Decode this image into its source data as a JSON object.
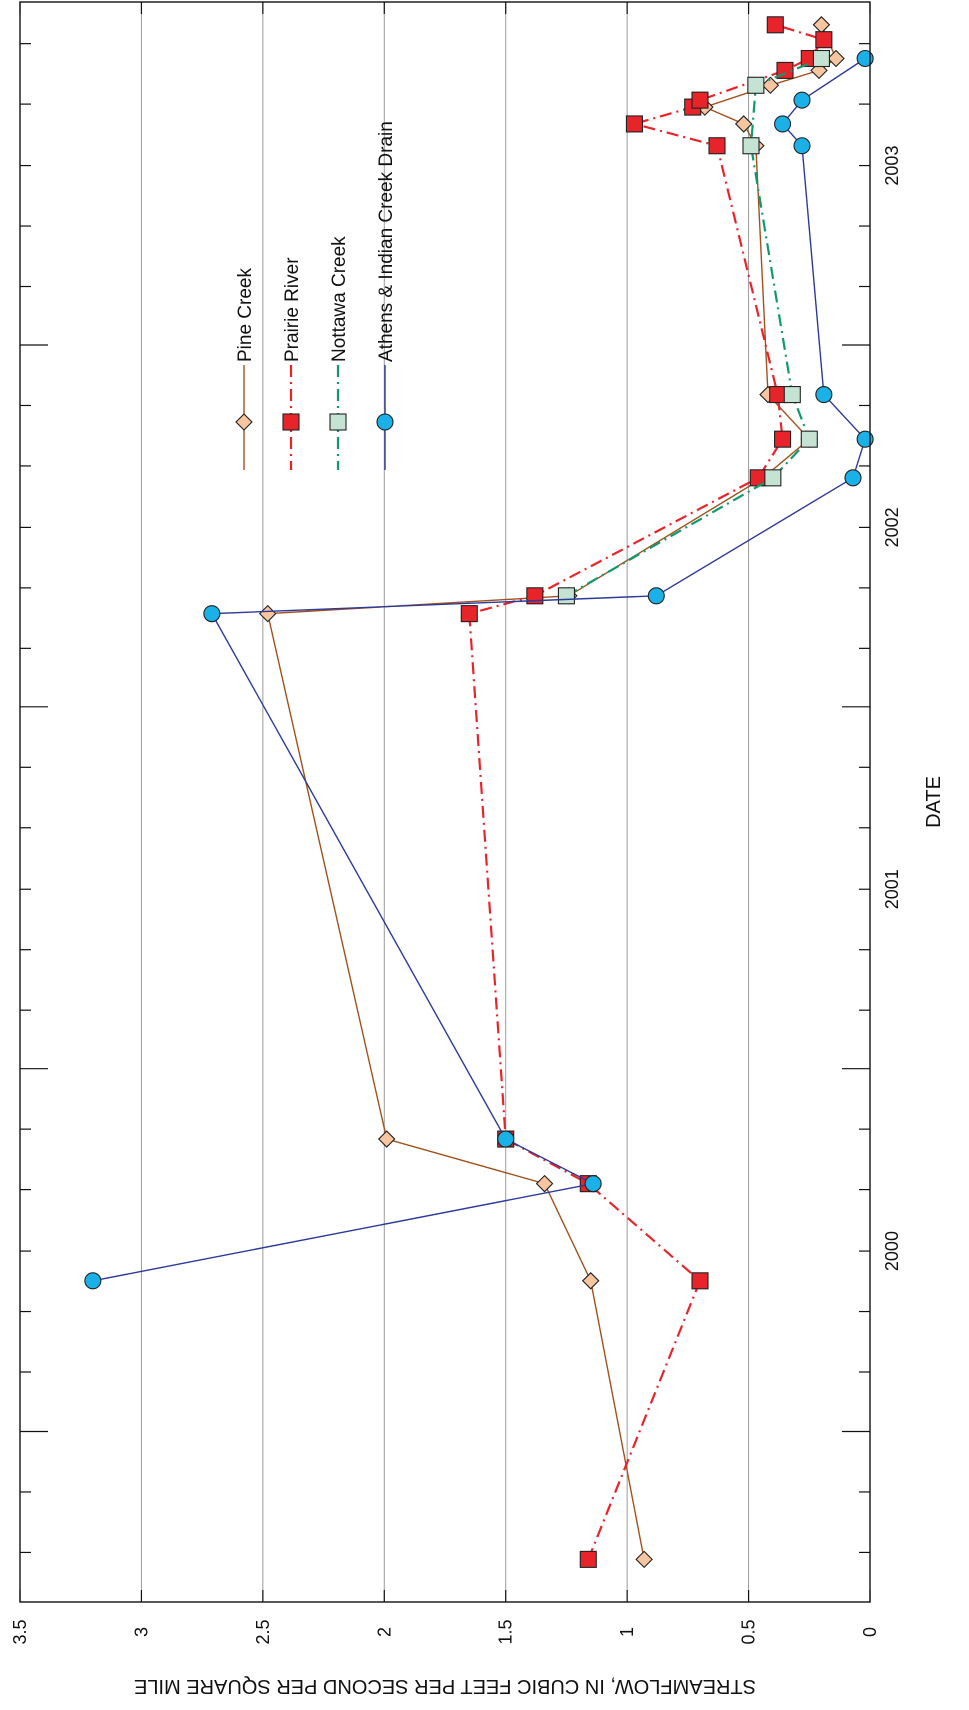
{
  "chart_data": {
    "type": "line",
    "orientation": "rotated-90",
    "xlabel": "DATE",
    "ylabel": "STREAMFLOW, IN CUBIC FEET PER SECOND PER SQUARE MILE",
    "ylim": [
      0,
      3.5
    ],
    "y_ticks": [
      {
        "value": 0,
        "label": "0"
      },
      {
        "value": 0.5,
        "label": "0.5"
      },
      {
        "value": 1,
        "label": "1"
      },
      {
        "value": 1.5,
        "label": "1.5"
      },
      {
        "value": 2,
        "label": "2"
      },
      {
        "value": 2.5,
        "label": "2.5"
      },
      {
        "value": 3,
        "label": "3"
      },
      {
        "value": 3.5,
        "label": "3.5"
      }
    ],
    "xlim": [
      "1999-07-13",
      "2003-12-13"
    ],
    "year_labels": [
      {
        "label": "2000",
        "date": "2000-07-01"
      },
      {
        "label": "2001",
        "date": "2001-07-01"
      },
      {
        "label": "2002",
        "date": "2002-07-01"
      },
      {
        "label": "2003",
        "date": "2003-07-01"
      }
    ],
    "grid": "horizontal at 0.5, 1, 1.5, 2, 2.5, 3",
    "legend_position": "upper-right",
    "series": [
      {
        "name": "Pine Creek",
        "color": "#a0521e",
        "line_style": "solid",
        "marker": "diamond",
        "marker_fill": "#f7c59f",
        "points": [
          {
            "x": "1999-08-25",
            "y": 0.93
          },
          {
            "x": "2000-06-01",
            "y": 1.15
          },
          {
            "x": "2000-09-07",
            "y": 1.34
          },
          {
            "x": "2000-10-22",
            "y": 1.99
          },
          {
            "x": "2002-04-05",
            "y": 2.48
          },
          {
            "x": "2002-04-23",
            "y": 1.24
          },
          {
            "x": "2002-08-20",
            "y": 0.44
          },
          {
            "x": "2002-09-28",
            "y": 0.25
          },
          {
            "x": "2002-11-12",
            "y": 0.42
          },
          {
            "x": "2003-07-21",
            "y": 0.47
          },
          {
            "x": "2003-08-12",
            "y": 0.52
          },
          {
            "x": "2003-08-29",
            "y": 0.68
          },
          {
            "x": "2003-09-20",
            "y": 0.41
          },
          {
            "x": "2003-10-05",
            "y": 0.21
          },
          {
            "x": "2003-10-17",
            "y": 0.14
          },
          {
            "x": "2003-11-20",
            "y": 0.2
          }
        ]
      },
      {
        "name": "Prairie River",
        "color": "#e8242b",
        "line_style": "dash-dot",
        "marker": "square",
        "marker_fill": "#e8242b",
        "points": [
          {
            "x": "1999-08-25",
            "y": 1.16
          },
          {
            "x": "2000-06-01",
            "y": 0.7
          },
          {
            "x": "2000-09-07",
            "y": 1.16
          },
          {
            "x": "2000-10-22",
            "y": 1.5
          },
          {
            "x": "2002-04-05",
            "y": 1.65
          },
          {
            "x": "2002-04-23",
            "y": 1.38
          },
          {
            "x": "2002-08-20",
            "y": 0.46
          },
          {
            "x": "2002-09-28",
            "y": 0.36
          },
          {
            "x": "2002-11-12",
            "y": 0.38
          },
          {
            "x": "2003-07-21",
            "y": 0.63
          },
          {
            "x": "2003-08-12",
            "y": 0.97
          },
          {
            "x": "2003-08-29",
            "y": 0.73
          },
          {
            "x": "2003-09-05",
            "y": 0.7
          },
          {
            "x": "2003-10-05",
            "y": 0.35
          },
          {
            "x": "2003-10-17",
            "y": 0.25
          },
          {
            "x": "2003-11-05",
            "y": 0.19
          },
          {
            "x": "2003-11-20",
            "y": 0.39
          }
        ]
      },
      {
        "name": "Nottawa Creek",
        "color": "#0f9a6d",
        "line_style": "dash-dot",
        "marker": "square",
        "marker_fill": "#c5e3d3",
        "points": [
          {
            "x": "2002-04-23",
            "y": 1.25
          },
          {
            "x": "2002-08-20",
            "y": 0.4
          },
          {
            "x": "2002-09-28",
            "y": 0.25
          },
          {
            "x": "2002-11-12",
            "y": 0.32
          },
          {
            "x": "2003-07-21",
            "y": 0.49
          },
          {
            "x": "2003-09-20",
            "y": 0.47
          },
          {
            "x": "2003-10-17",
            "y": 0.2
          }
        ]
      },
      {
        "name": "Athens & Indian Creek Drain",
        "color": "#2d3a9a",
        "line_style": "solid",
        "marker": "circle",
        "marker_fill": "#1ab0e8",
        "points": [
          {
            "x": "2000-06-01",
            "y": 3.2
          },
          {
            "x": "2000-09-07",
            "y": 1.14
          },
          {
            "x": "2000-10-22",
            "y": 1.5
          },
          {
            "x": "2002-04-05",
            "y": 2.71
          },
          {
            "x": "2002-04-23",
            "y": 0.88
          },
          {
            "x": "2002-08-20",
            "y": 0.07
          },
          {
            "x": "2002-09-28",
            "y": 0.02
          },
          {
            "x": "2002-11-12",
            "y": 0.19
          },
          {
            "x": "2003-07-21",
            "y": 0.28
          },
          {
            "x": "2003-08-12",
            "y": 0.36
          },
          {
            "x": "2003-09-05",
            "y": 0.28
          },
          {
            "x": "2003-10-17",
            "y": 0.02
          }
        ]
      }
    ]
  }
}
